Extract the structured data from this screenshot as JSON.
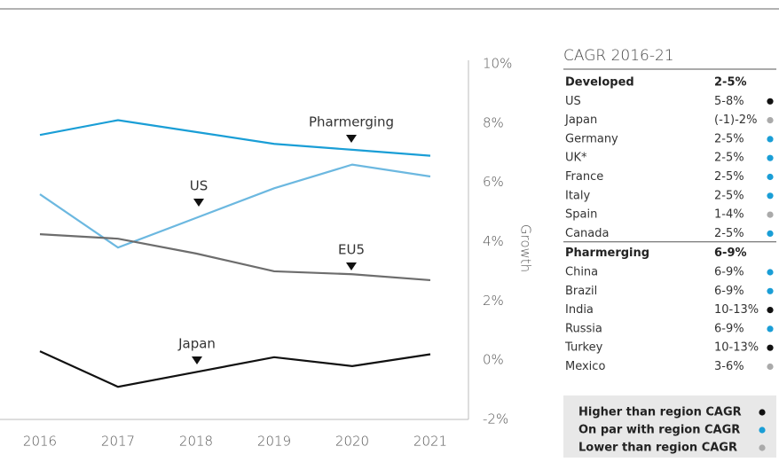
{
  "chart_data": {
    "type": "line",
    "y_label": "Growth",
    "categories": [
      "2016",
      "2017",
      "2018",
      "2019",
      "2020",
      "2021"
    ],
    "ylim": [
      -2,
      10
    ],
    "yticks": [
      {
        "value": -2,
        "label": "-2%"
      },
      {
        "value": 0,
        "label": "0%"
      },
      {
        "value": 2,
        "label": "2%"
      },
      {
        "value": 4,
        "label": "4%"
      },
      {
        "value": 6,
        "label": "6%"
      },
      {
        "value": 8,
        "label": "8%"
      },
      {
        "value": 10,
        "label": "10%"
      }
    ],
    "series": [
      {
        "name": "Pharmerging",
        "color": "#1a9ed6",
        "values": [
          7.6,
          8.1,
          7.7,
          7.3,
          7.1,
          6.9
        ]
      },
      {
        "name": "US",
        "color": "#6cb8e0",
        "values": [
          5.6,
          3.8,
          4.8,
          5.8,
          6.6,
          6.2
        ]
      },
      {
        "name": "EU5",
        "color": "#6d6d6d",
        "values": [
          4.25,
          4.1,
          3.6,
          3.0,
          2.9,
          2.7
        ]
      },
      {
        "name": "Japan",
        "color": "#111111",
        "values": [
          0.3,
          -0.9,
          -0.4,
          0.1,
          -0.2,
          0.2
        ]
      }
    ]
  },
  "table": {
    "title": "CAGR 2016-21",
    "groups": [
      {
        "name": "Developed",
        "value": "2-5%",
        "rows": [
          {
            "name": "US",
            "value": "5-8%",
            "color": "#111111"
          },
          {
            "name": "Japan",
            "value": "(-1)-2%",
            "color": "#aaaaaa"
          },
          {
            "name": "Germany",
            "value": "2-5%",
            "color": "#1a9ed6"
          },
          {
            "name": "UK*",
            "value": "2-5%",
            "color": "#1a9ed6"
          },
          {
            "name": "France",
            "value": "2-5%",
            "color": "#1a9ed6"
          },
          {
            "name": "Italy",
            "value": "2-5%",
            "color": "#1a9ed6"
          },
          {
            "name": "Spain",
            "value": "1-4%",
            "color": "#aaaaaa"
          },
          {
            "name": "Canada",
            "value": "2-5%",
            "color": "#1a9ed6"
          }
        ]
      },
      {
        "name": "Pharmerging",
        "value": "6-9%",
        "rows": [
          {
            "name": "China",
            "value": "6-9%",
            "color": "#1a9ed6"
          },
          {
            "name": "Brazil",
            "value": "6-9%",
            "color": "#1a9ed6"
          },
          {
            "name": "India",
            "value": "10-13%",
            "color": "#111111"
          },
          {
            "name": "Russia",
            "value": "6-9%",
            "color": "#1a9ed6"
          },
          {
            "name": "Turkey",
            "value": "10-13%",
            "color": "#111111"
          },
          {
            "name": "Mexico",
            "value": "3-6%",
            "color": "#aaaaaa"
          }
        ]
      }
    ],
    "legend": [
      {
        "label": "Higher than region CAGR",
        "color": "#111111"
      },
      {
        "label": "On par with region CAGR",
        "color": "#1a9ed6"
      },
      {
        "label": "Lower than region CAGR",
        "color": "#aaaaaa"
      }
    ]
  }
}
